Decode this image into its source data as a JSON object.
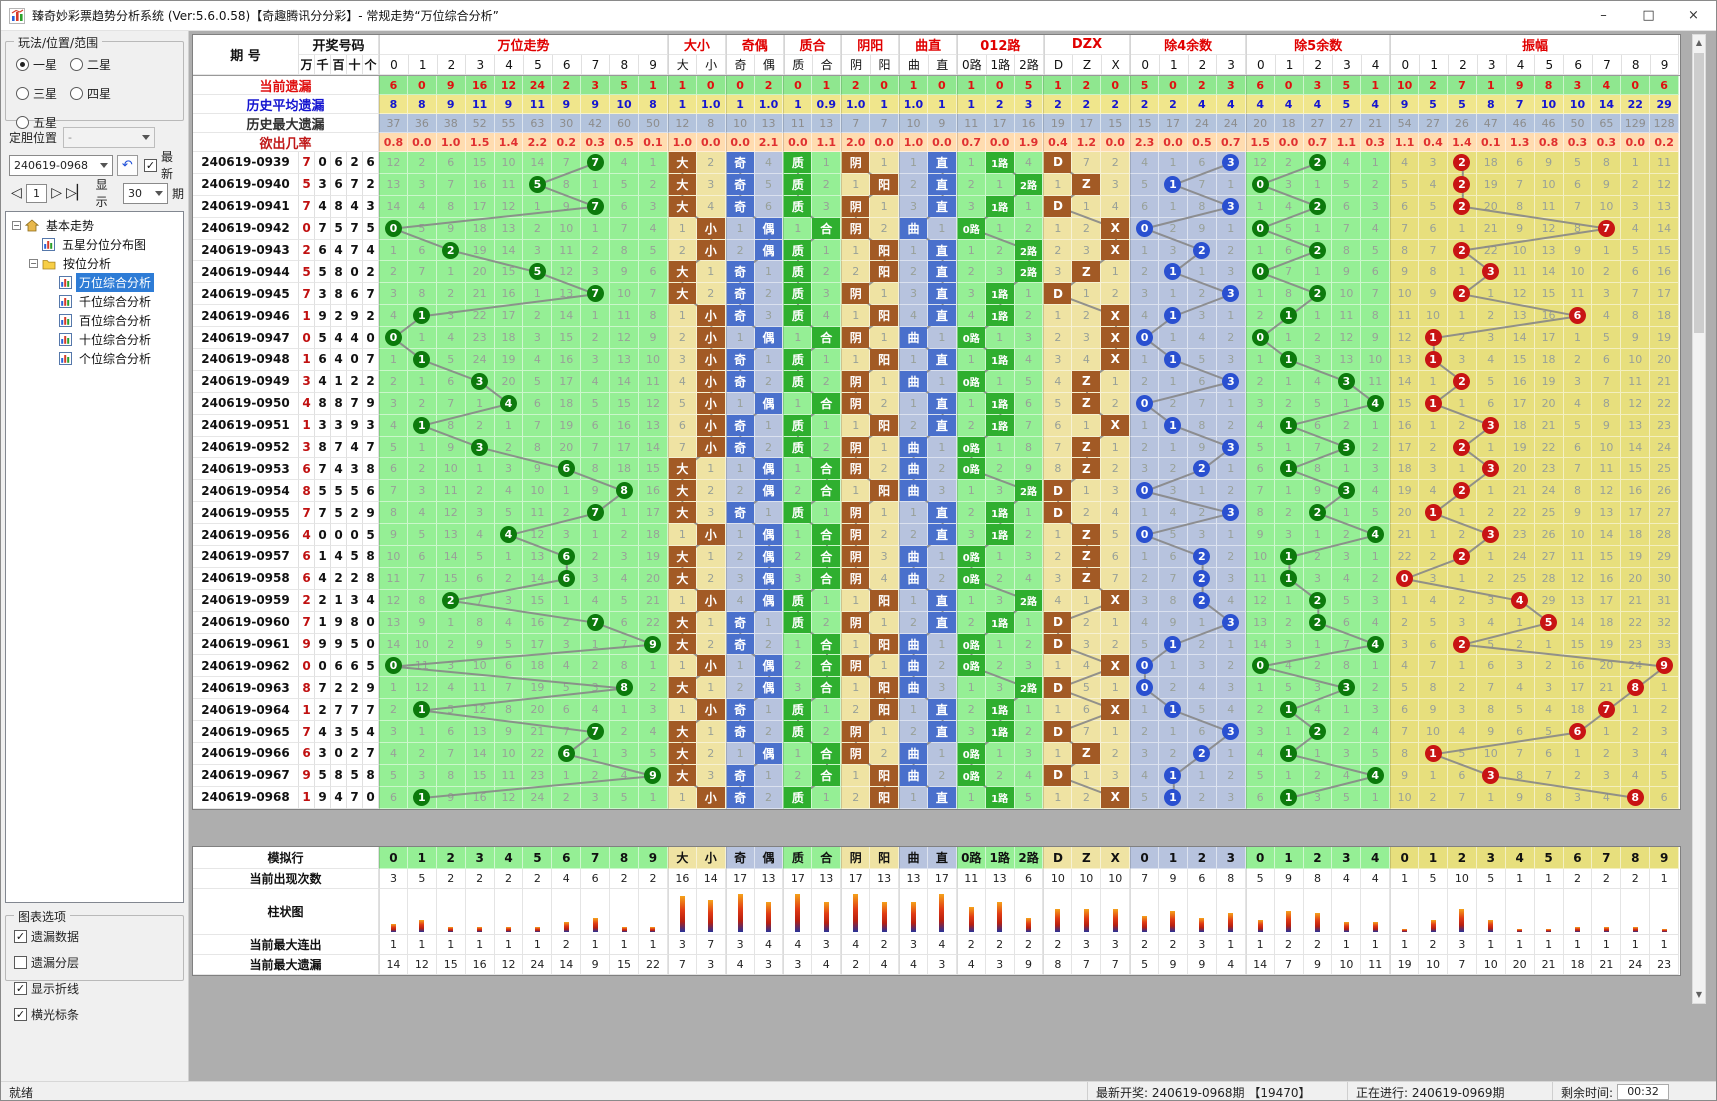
{
  "window": {
    "title": "臻奇妙彩票趋势分析系统 (Ver:5.6.0.58)【奇趣腾讯分分彩】- 常规走势“万位综合分析”",
    "controls": {
      "min": "–",
      "max": "□",
      "close": "×"
    }
  },
  "left": {
    "group_label": "玩法/位置/范围",
    "radios": [
      {
        "label": "一星",
        "checked": true
      },
      {
        "label": "二星",
        "checked": false
      },
      {
        "label": "三星",
        "checked": false
      },
      {
        "label": "四星",
        "checked": false
      },
      {
        "label": "五星",
        "checked": false
      }
    ],
    "dingdan_label": "定胆位置",
    "dingdan_value": "-",
    "period_value": "240619-0968",
    "undo_glyph": "↶",
    "latest_label": "最新",
    "latest_checked": true,
    "nav_first": "◁",
    "nav_next": "▷",
    "nav_last": "▷▏",
    "page_value": "1",
    "show_label": "显示",
    "show_value": "30",
    "qi_label": "期",
    "tree": [
      {
        "label": "基本走势",
        "icon": "home",
        "level": 0,
        "expander": true,
        "selected": false
      },
      {
        "label": "五星分位分布图",
        "icon": "chart",
        "level": 1,
        "expander": false,
        "selected": false
      },
      {
        "label": "按位分析",
        "icon": "folder",
        "level": 1,
        "expander": true,
        "selected": false
      },
      {
        "label": "万位综合分析",
        "icon": "chart",
        "level": 2,
        "expander": false,
        "selected": true
      },
      {
        "label": "千位综合分析",
        "icon": "chart",
        "level": 2,
        "expander": false,
        "selected": false
      },
      {
        "label": "百位综合分析",
        "icon": "chart",
        "level": 2,
        "expander": false,
        "selected": false
      },
      {
        "label": "十位综合分析",
        "icon": "chart",
        "level": 2,
        "expander": false,
        "selected": false
      },
      {
        "label": "个位综合分析",
        "icon": "chart",
        "level": 2,
        "expander": false,
        "selected": false
      }
    ],
    "options_label": "图表选项",
    "options": [
      {
        "label": "遗漏数据",
        "checked": true
      },
      {
        "label": "遗漏分层",
        "checked": false
      },
      {
        "label": "显示折线",
        "checked": true
      },
      {
        "label": "横光标条",
        "checked": true
      }
    ]
  },
  "table": {
    "period_header": "期 号",
    "draw_header": "开奖号码",
    "digit_cols": [
      "万",
      "千",
      "百",
      "十",
      "个"
    ],
    "groups": [
      {
        "key": "trend",
        "label": "万位走势",
        "cols": [
          "0",
          "1",
          "2",
          "3",
          "4",
          "5",
          "6",
          "7",
          "8",
          "9"
        ],
        "style": "circle",
        "bg": "#95EF95",
        "mark": "#0C7A0C"
      },
      {
        "key": "dx",
        "label": "大小",
        "cols": [
          "大",
          "小"
        ],
        "style": "box",
        "bg": "#EFE3A3",
        "mark": "#A25A25"
      },
      {
        "key": "jo",
        "label": "奇偶",
        "cols": [
          "奇",
          "偶"
        ],
        "style": "box",
        "bg": "#B7C3DE",
        "mark": "#4A70CC"
      },
      {
        "key": "zh",
        "label": "质合",
        "cols": [
          "质",
          "合"
        ],
        "style": "box",
        "bg": "#95EF95",
        "mark": "#2FAF2F"
      },
      {
        "key": "yy",
        "label": "阴阳",
        "cols": [
          "阴",
          "阳"
        ],
        "style": "box",
        "bg": "#EFE3A3",
        "mark": "#A25A25"
      },
      {
        "key": "qz",
        "label": "曲直",
        "cols": [
          "曲",
          "直"
        ],
        "style": "box",
        "bg": "#B7C3DE",
        "mark": "#4A70CC"
      },
      {
        "key": "lu",
        "label": "012路",
        "cols": [
          "0路",
          "1路",
          "2路"
        ],
        "style": "box",
        "bg": "#95EF95",
        "mark": "#2FAF2F"
      },
      {
        "key": "dzx",
        "label": "DZX",
        "cols": [
          "D",
          "Z",
          "X"
        ],
        "style": "box",
        "bg": "#EFE3A3",
        "mark": "#A25A25"
      },
      {
        "key": "m4",
        "label": "除4余数",
        "cols": [
          "0",
          "1",
          "2",
          "3"
        ],
        "style": "circle",
        "bg": "#B7C3DE",
        "mark": "#2A50D0"
      },
      {
        "key": "m5",
        "label": "除5余数",
        "cols": [
          "0",
          "1",
          "2",
          "3",
          "4"
        ],
        "style": "circle",
        "bg": "#95EF95",
        "mark": "#0C7A0C"
      },
      {
        "key": "amp",
        "label": "振幅",
        "cols": [
          "0",
          "1",
          "2",
          "3",
          "4",
          "5",
          "6",
          "7",
          "8",
          "9"
        ],
        "style": "circle",
        "bg": "#E7DF7D",
        "mark": "#C81414"
      }
    ],
    "stat_rows": [
      {
        "label": "当前遗漏",
        "label_color": "#e01010",
        "text": "#e01010",
        "bg": "#8FE78F",
        "values": [
          "6",
          "0",
          "9",
          "16",
          "12",
          "24",
          "2",
          "3",
          "5",
          "1",
          "1",
          "0",
          "0",
          "2",
          "0",
          "1",
          "2",
          "0",
          "1",
          "0",
          "1",
          "0",
          "5",
          "1",
          "2",
          "0",
          "5",
          "0",
          "2",
          "3",
          "6",
          "0",
          "3",
          "5",
          "1",
          "10",
          "2",
          "7",
          "1",
          "9",
          "8",
          "3",
          "4",
          "0",
          "6"
        ]
      },
      {
        "label": "历史平均遗漏",
        "label_color": "#1515d0",
        "text": "#1515d0",
        "bg": "#F0E68C",
        "values": [
          "8",
          "8",
          "9",
          "11",
          "9",
          "11",
          "9",
          "9",
          "10",
          "8",
          "1",
          "1.0",
          "1",
          "1.0",
          "1",
          "0.9",
          "1.0",
          "1",
          "1.0",
          "1",
          "1",
          "2",
          "3",
          "2",
          "2",
          "2",
          "2",
          "2",
          "4",
          "4",
          "4",
          "4",
          "4",
          "5",
          "4",
          "9",
          "5",
          "5",
          "8",
          "7",
          "10",
          "10",
          "14",
          "22",
          "29"
        ]
      },
      {
        "label": "历史最大遗漏",
        "label_color": "#303030",
        "text": "#8c8c8c",
        "bg": "#B3C3DC",
        "values": [
          "37",
          "36",
          "38",
          "52",
          "55",
          "63",
          "30",
          "42",
          "60",
          "50",
          "12",
          "8",
          "10",
          "13",
          "11",
          "13",
          "7",
          "7",
          "10",
          "9",
          "11",
          "17",
          "16",
          "19",
          "17",
          "15",
          "15",
          "17",
          "24",
          "24",
          "20",
          "18",
          "27",
          "27",
          "21",
          "54",
          "27",
          "26",
          "47",
          "46",
          "46",
          "50",
          "65",
          "129",
          "128"
        ]
      },
      {
        "label": "欲出几率",
        "label_color": "#c01818",
        "text": "#e03030",
        "bg": "#FFDCB0",
        "values": [
          "0.8",
          "0.0",
          "1.0",
          "1.5",
          "1.4",
          "2.2",
          "0.2",
          "0.3",
          "0.5",
          "0.1",
          "1.0",
          "0.0",
          "0.0",
          "2.1",
          "0.0",
          "1.1",
          "2.0",
          "0.0",
          "1.0",
          "0.0",
          "0.7",
          "0.0",
          "1.9",
          "0.4",
          "1.2",
          "0.0",
          "2.3",
          "0.0",
          "0.5",
          "0.7",
          "1.5",
          "0.0",
          "0.7",
          "1.1",
          "0.3",
          "1.1",
          "0.4",
          "1.4",
          "0.1",
          "1.3",
          "0.8",
          "0.3",
          "0.3",
          "0.0",
          "0.2"
        ]
      }
    ],
    "rows": [
      {
        "p": "240619-0939",
        "d": [
          7,
          0,
          6,
          2,
          6
        ]
      },
      {
        "p": "240619-0940",
        "d": [
          5,
          3,
          6,
          7,
          2
        ]
      },
      {
        "p": "240619-0941",
        "d": [
          7,
          4,
          8,
          4,
          3
        ]
      },
      {
        "p": "240619-0942",
        "d": [
          0,
          7,
          5,
          7,
          5
        ]
      },
      {
        "p": "240619-0943",
        "d": [
          2,
          6,
          4,
          7,
          4
        ]
      },
      {
        "p": "240619-0944",
        "d": [
          5,
          5,
          8,
          0,
          2
        ]
      },
      {
        "p": "240619-0945",
        "d": [
          7,
          3,
          8,
          6,
          7
        ]
      },
      {
        "p": "240619-0946",
        "d": [
          1,
          9,
          2,
          9,
          2
        ]
      },
      {
        "p": "240619-0947",
        "d": [
          0,
          5,
          4,
          4,
          0
        ]
      },
      {
        "p": "240619-0948",
        "d": [
          1,
          6,
          4,
          0,
          7
        ]
      },
      {
        "p": "240619-0949",
        "d": [
          3,
          4,
          1,
          2,
          2
        ]
      },
      {
        "p": "240619-0950",
        "d": [
          4,
          8,
          8,
          7,
          9
        ]
      },
      {
        "p": "240619-0951",
        "d": [
          1,
          3,
          3,
          9,
          3
        ]
      },
      {
        "p": "240619-0952",
        "d": [
          3,
          8,
          7,
          4,
          7
        ]
      },
      {
        "p": "240619-0953",
        "d": [
          6,
          7,
          4,
          3,
          8
        ]
      },
      {
        "p": "240619-0954",
        "d": [
          8,
          5,
          5,
          5,
          6
        ]
      },
      {
        "p": "240619-0955",
        "d": [
          7,
          7,
          5,
          2,
          9
        ]
      },
      {
        "p": "240619-0956",
        "d": [
          4,
          0,
          0,
          0,
          5
        ]
      },
      {
        "p": "240619-0957",
        "d": [
          6,
          1,
          4,
          5,
          8
        ]
      },
      {
        "p": "240619-0958",
        "d": [
          6,
          4,
          2,
          2,
          8
        ]
      },
      {
        "p": "240619-0959",
        "d": [
          2,
          2,
          1,
          3,
          4
        ]
      },
      {
        "p": "240619-0960",
        "d": [
          7,
          1,
          9,
          8,
          0
        ]
      },
      {
        "p": "240619-0961",
        "d": [
          9,
          9,
          9,
          5,
          0
        ]
      },
      {
        "p": "240619-0962",
        "d": [
          0,
          0,
          6,
          6,
          5
        ]
      },
      {
        "p": "240619-0963",
        "d": [
          8,
          7,
          2,
          2,
          9
        ]
      },
      {
        "p": "240619-0964",
        "d": [
          1,
          2,
          7,
          7,
          7
        ]
      },
      {
        "p": "240619-0965",
        "d": [
          7,
          4,
          3,
          5,
          4
        ]
      },
      {
        "p": "240619-0966",
        "d": [
          6,
          3,
          0,
          2,
          7
        ]
      },
      {
        "p": "240619-0967",
        "d": [
          9,
          5,
          8,
          5,
          8
        ]
      },
      {
        "p": "240619-0968",
        "d": [
          1,
          9,
          4,
          7,
          0
        ]
      }
    ],
    "prev_digit": 9,
    "seeds": {
      "trend": [
        12,
        2,
        6,
        15,
        10,
        14,
        7,
        0,
        4,
        1
      ],
      "dx": [
        0,
        2
      ],
      "jo": [
        0,
        4
      ],
      "zh": [
        0,
        1
      ],
      "yy": [
        0,
        1
      ],
      "qz": [
        1,
        0
      ],
      "lu": [
        1,
        0,
        4
      ],
      "dzx": [
        0,
        7,
        2
      ],
      "m4": [
        4,
        1,
        6,
        0
      ],
      "m5": [
        12,
        2,
        0,
        4,
        1
      ],
      "amp": [
        4,
        3,
        0,
        18,
        6,
        9,
        5,
        8,
        1,
        11
      ]
    },
    "rules": {
      "dx_big": [
        5,
        6,
        7,
        8,
        9
      ],
      "zh_prime": [
        1,
        2,
        3,
        5,
        7
      ],
      "yy_yin": [
        0,
        3,
        4,
        6,
        7
      ],
      "qz_qu": [
        0,
        3,
        6,
        8,
        9
      ],
      "dzx_d": [
        7,
        8,
        9
      ],
      "dzx_z": [
        3,
        4,
        5,
        6
      ]
    },
    "bottom_labels": [
      "模拟行",
      "当前出现次数",
      "柱状图",
      "当前最大连出",
      "当前最大遗漏"
    ]
  },
  "status": {
    "ready": "就绪",
    "latest": "最新开奖: 240619-0968期 【19470】",
    "ongoing": "正在进行: 240619-0969期",
    "remain_label": "剩余时间:",
    "remain_time": "00:32"
  }
}
